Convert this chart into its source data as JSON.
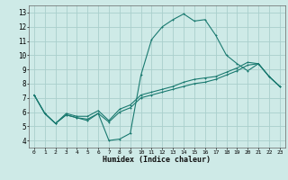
{
  "xlabel": "Humidex (Indice chaleur)",
  "xlim": [
    -0.5,
    23.5
  ],
  "ylim": [
    3.5,
    13.5
  ],
  "xticks": [
    0,
    1,
    2,
    3,
    4,
    5,
    6,
    7,
    8,
    9,
    10,
    11,
    12,
    13,
    14,
    15,
    16,
    17,
    18,
    19,
    20,
    21,
    22,
    23
  ],
  "yticks": [
    4,
    5,
    6,
    7,
    8,
    9,
    10,
    11,
    12,
    13
  ],
  "bg_color": "#ceeae7",
  "grid_color": "#aacfcc",
  "line_color": "#1a7a70",
  "line1_x": [
    0,
    1,
    2,
    3,
    4,
    5,
    6,
    7,
    8,
    9,
    10,
    11,
    12,
    13,
    14,
    15,
    16,
    17,
    18,
    19,
    20,
    21,
    22,
    23
  ],
  "line1_y": [
    7.2,
    5.9,
    5.2,
    5.8,
    5.6,
    5.4,
    5.9,
    4.0,
    4.1,
    4.5,
    8.6,
    11.1,
    12.0,
    12.5,
    12.9,
    12.4,
    12.5,
    11.4,
    10.0,
    9.4,
    8.9,
    9.4,
    8.5,
    7.8
  ],
  "line2_x": [
    0,
    1,
    2,
    3,
    4,
    5,
    6,
    7,
    8,
    9,
    10,
    11,
    12,
    13,
    14,
    15,
    16,
    17,
    18,
    19,
    20,
    21,
    22,
    23
  ],
  "line2_y": [
    7.2,
    5.9,
    5.2,
    5.8,
    5.6,
    5.5,
    5.9,
    5.3,
    6.0,
    6.3,
    7.0,
    7.2,
    7.4,
    7.6,
    7.8,
    8.0,
    8.1,
    8.3,
    8.6,
    8.9,
    9.3,
    9.4,
    8.5,
    7.8
  ],
  "line3_x": [
    0,
    1,
    2,
    3,
    4,
    5,
    6,
    7,
    8,
    9,
    10,
    11,
    12,
    13,
    14,
    15,
    16,
    17,
    18,
    19,
    20,
    21,
    22,
    23
  ],
  "line3_y": [
    7.2,
    5.9,
    5.2,
    5.9,
    5.7,
    5.7,
    6.1,
    5.4,
    6.2,
    6.5,
    7.2,
    7.4,
    7.6,
    7.8,
    8.1,
    8.3,
    8.4,
    8.5,
    8.8,
    9.1,
    9.5,
    9.4,
    8.5,
    7.8
  ],
  "xlabel_fontsize": 6.0,
  "tick_fontsize_x": 4.5,
  "tick_fontsize_y": 5.5,
  "linewidth": 0.8,
  "markersize": 2.0
}
